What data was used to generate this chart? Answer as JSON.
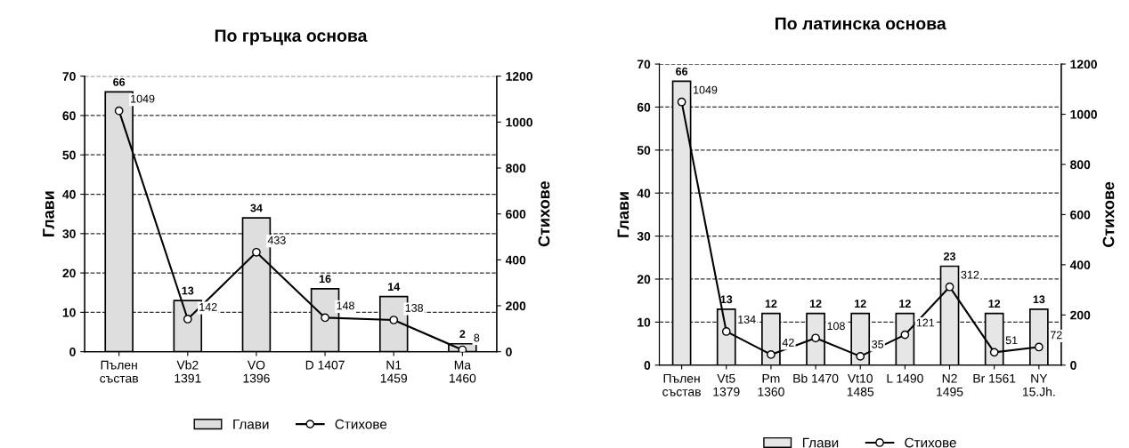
{
  "chart_data": [
    {
      "type": "bar",
      "title": "По гръцка основа",
      "ylabel": "Глави",
      "y2label": "Стихове",
      "categories": [
        "Пълен\nсъстав",
        "Vb2\n1391",
        "VO\n1396",
        "D 1407",
        "N1\n1459",
        "Ma\n1460"
      ],
      "series": [
        {
          "name": "Глави",
          "color": "#dedede",
          "values": [
            66,
            13,
            34,
            16,
            14,
            2
          ]
        },
        {
          "name": "Стихове",
          "type": "line",
          "axis": "y2",
          "color": "#000000",
          "values": [
            1049,
            142,
            433,
            148,
            138,
            8
          ]
        }
      ],
      "ylim": [
        0,
        70
      ],
      "yticks": [
        0,
        10,
        20,
        30,
        40,
        50,
        60,
        70
      ],
      "y2lim": [
        0,
        1200
      ],
      "y2ticks": [
        0,
        200,
        400,
        600,
        800,
        1000,
        1200
      ],
      "grid": "y",
      "legend": "bottom",
      "marker": "circle",
      "line_style": "solid",
      "data_labels": true
    },
    {
      "type": "bar",
      "title": "По латинска основа",
      "ylabel": "Глави",
      "y2label": "Стихове",
      "categories": [
        "Пълен\nсъстав",
        "Vt5\n1379",
        "Pm\n1360",
        "Bb 1470",
        "Vt10\n1485",
        "L 1490",
        "N2\n1495",
        "Br 1561",
        "NY\n15.Jh."
      ],
      "series": [
        {
          "name": "Глави",
          "color": "#e6e6e6",
          "values": [
            66,
            13,
            12,
            12,
            12,
            12,
            23,
            12,
            13
          ]
        },
        {
          "name": "Стихове",
          "type": "line",
          "axis": "y2",
          "color": "#000000",
          "values": [
            1049,
            134,
            42,
            108,
            35,
            121,
            312,
            51,
            72
          ]
        }
      ],
      "ylim": [
        0,
        70
      ],
      "yticks": [
        0,
        10,
        20,
        30,
        40,
        50,
        60,
        70
      ],
      "y2lim": [
        0,
        1200
      ],
      "y2ticks": [
        0,
        200,
        400,
        600,
        800,
        1000,
        1200
      ],
      "grid": "y",
      "legend": "bottom",
      "marker": "circle",
      "line_style": "solid",
      "data_labels": true
    }
  ]
}
